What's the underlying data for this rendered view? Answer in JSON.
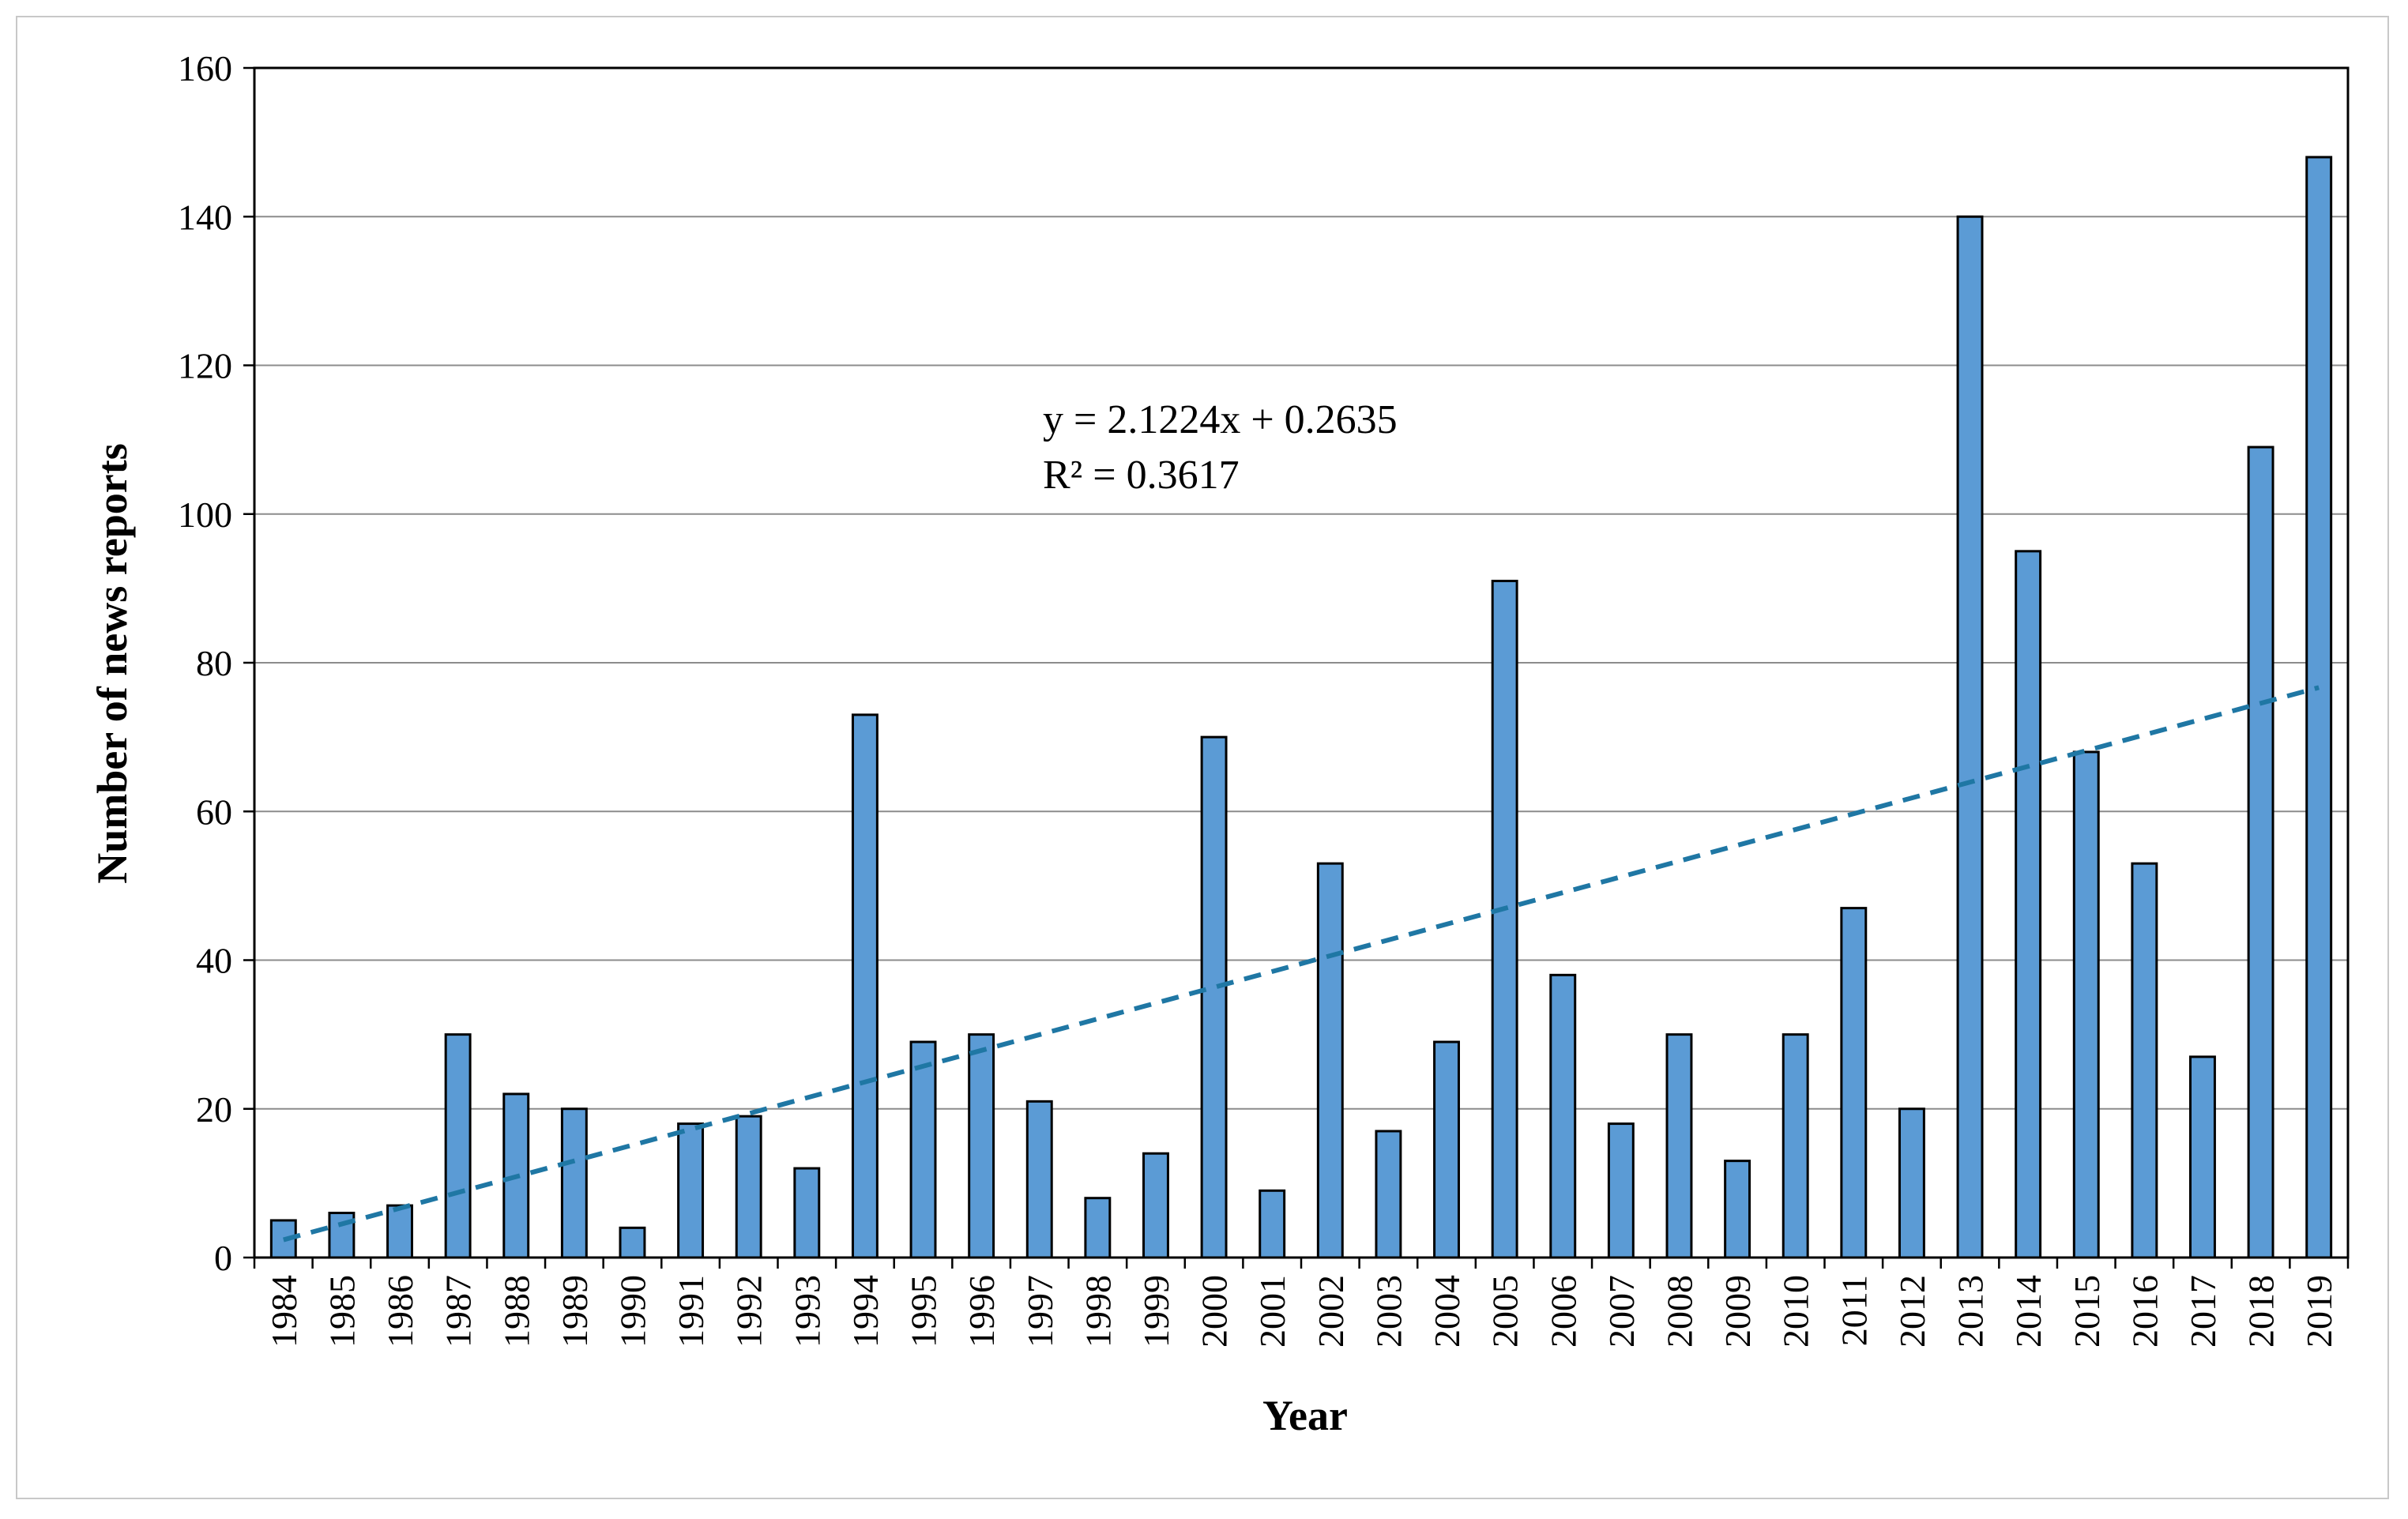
{
  "chart_data": {
    "type": "bar",
    "title": "",
    "xlabel": "Year",
    "ylabel": "Number of news reports",
    "ylim": [
      0,
      160
    ],
    "yticks": [
      0,
      20,
      40,
      60,
      80,
      100,
      120,
      140,
      160
    ],
    "grid": true,
    "legend": "none",
    "categories": [
      "1984",
      "1985",
      "1986",
      "1987",
      "1988",
      "1989",
      "1990",
      "1991",
      "1992",
      "1993",
      "1994",
      "1995",
      "1996",
      "1997",
      "1998",
      "1999",
      "2000",
      "2001",
      "2002",
      "2003",
      "2004",
      "2005",
      "2006",
      "2007",
      "2008",
      "2009",
      "2010",
      "2011",
      "2012",
      "2013",
      "2014",
      "2015",
      "2016",
      "2017",
      "2018",
      "2019"
    ],
    "values": [
      5,
      6,
      7,
      30,
      22,
      20,
      4,
      18,
      19,
      12,
      73,
      29,
      30,
      21,
      8,
      14,
      70,
      9,
      53,
      17,
      29,
      91,
      38,
      18,
      30,
      13,
      30,
      47,
      20,
      140,
      95,
      68,
      53,
      27,
      109,
      148
    ],
    "trendline": {
      "type": "linear",
      "slope": 2.1224,
      "intercept": 0.2635,
      "equation_label": "y = 2.1224x + 0.2635",
      "r2_label": "R² = 0.3617",
      "color": "#1f77a4"
    },
    "bar_color": "#5b9bd5",
    "bar_edge_color": "#000000"
  }
}
